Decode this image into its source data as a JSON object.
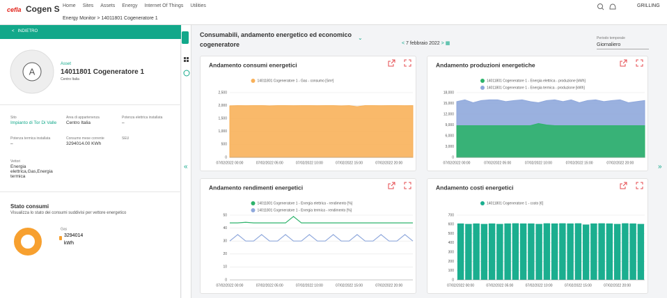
{
  "nav": {
    "logo_mark": "cefla",
    "logo": "Cogen S",
    "items": [
      "Home",
      "Sites",
      "Assets",
      "Energy",
      "Internet Of Things",
      "Utilities"
    ],
    "user": "GRILLING"
  },
  "breadcrumb": [
    "Energy Monitor",
    "14011801 Cogeneratore 1"
  ],
  "sidebar": {
    "back": "INDIETRO",
    "avatar": "A",
    "asset_label": "Asset",
    "asset_name": "14011801 Cogeneratore 1",
    "asset_region": "Centro Italia",
    "fields": [
      {
        "label": "Sito",
        "value": "Impianto di Tor Di Valle"
      },
      {
        "label": "Area di appartenenza",
        "value": "Centro Italia"
      },
      {
        "label": "Potenza elettrica installata",
        "value": "–"
      },
      {
        "label": "Potenza termica installata",
        "value": "–"
      },
      {
        "label": "Consumo mese corrente",
        "value": "3294014.00 KWh"
      },
      {
        "label": "SEU"
      },
      {
        "label": "Vettori",
        "value": "Energia elettrica,Gas,Energia termica"
      }
    ],
    "status_title": "Stato consumi",
    "status_desc": "Visualizza lo stato dei consumi suddivisi per vettore energetico"
  },
  "main": {
    "title": "Consumabili, andamento energetico ed economico cogeneratore",
    "date": "7 febbraio 2022",
    "period_label": "Periodo temporale",
    "period_value": "Giornaliero"
  },
  "chart_data": [
    {
      "type": "area",
      "title": "Andamento consumi energetici",
      "categories": [
        "07/02/2022 00:00",
        null,
        null,
        null,
        null,
        "07/02/2022 05:00",
        null,
        null,
        null,
        null,
        "07/02/2022 10:00",
        null,
        null,
        null,
        null,
        "07/02/2022 15:00",
        null,
        null,
        null,
        null,
        "07/02/2022 20:00",
        null,
        null,
        null
      ],
      "series": [
        {
          "name": "14011801 Cogeneratore 1 - Gas - consumo [Sm³]",
          "color": "#f8b15a",
          "values": [
            1990,
            2000,
            1995,
            2000,
            2000,
            1990,
            2000,
            2000,
            1995,
            2000,
            2000,
            1995,
            2000,
            2000,
            1990,
            2000,
            1960,
            2000,
            2000,
            1995,
            2000,
            2000,
            1995,
            2000
          ]
        }
      ],
      "ylim": [
        0,
        2500
      ],
      "yticks": [
        0,
        500,
        {
          "value": 1000,
          "label": "1,000"
        },
        {
          "value": 1500,
          "label": "1,500"
        },
        {
          "value": 2000,
          "label": "2,000"
        },
        {
          "value": 2500,
          "label": "2,500"
        }
      ],
      "grid": true
    },
    {
      "type": "area",
      "title": "Andamento produzioni energetiche",
      "categories": [
        "07/02/2022 00:00",
        null,
        null,
        null,
        null,
        "07/02/2022 05:00",
        null,
        null,
        null,
        null,
        "07/02/2022 10:00",
        null,
        null,
        null,
        null,
        "07/02/2022 15:00",
        null,
        null,
        null,
        null,
        "07/02/2022 20:00",
        null,
        null,
        null
      ],
      "series": [
        {
          "name": "14011801 Cogeneratore 1 - Energia elettrica - produzione [kWh]",
          "color": "#2db36b",
          "values": [
            8800,
            8800,
            8800,
            8800,
            8800,
            8800,
            8800,
            8800,
            8800,
            8800,
            9400,
            9000,
            8800,
            8800,
            8800,
            8800,
            8800,
            8800,
            8800,
            8800,
            8800,
            8800,
            8800,
            8800
          ]
        },
        {
          "name": "14011801 Cogeneratore 1 - Energia termica - produzione [kWh]",
          "color": "#8fa8dc",
          "values": [
            15500,
            16000,
            15200,
            15800,
            16000,
            16000,
            15500,
            15800,
            16000,
            15500,
            15200,
            15800,
            16000,
            15500,
            16000,
            15200,
            15800,
            16000,
            15500,
            15800,
            16000,
            15200,
            15500,
            15800
          ]
        }
      ],
      "ylim": [
        0,
        18000
      ],
      "yticks": [
        0,
        {
          "value": 3000,
          "label": "3,000"
        },
        {
          "value": 6000,
          "label": "6,000"
        },
        {
          "value": 9000,
          "label": "9,000"
        },
        {
          "value": 12000,
          "label": "12,000"
        },
        {
          "value": 15000,
          "label": "15,000"
        },
        {
          "value": 18000,
          "label": "18,000"
        }
      ],
      "grid": true
    },
    {
      "type": "line",
      "title": "Andamento rendimenti energetici",
      "categories": [
        "07/02/2022 00:00",
        null,
        null,
        null,
        null,
        "07/02/2022 05:00",
        null,
        null,
        null,
        null,
        "07/02/2022 10:00",
        null,
        null,
        null,
        null,
        "07/02/2022 15:00",
        null,
        null,
        null,
        null,
        "07/02/2022 20:00",
        null,
        null,
        null
      ],
      "series": [
        {
          "name": "14011801 Cogeneratore 1 - Energia elettrica - rendimento [%]",
          "color": "#2db36b",
          "values": [
            44,
            44,
            44.5,
            44,
            44,
            44,
            44,
            44,
            49,
            44,
            44,
            44,
            44,
            44,
            44,
            44,
            44,
            44,
            44,
            44,
            44,
            44,
            44,
            44
          ]
        },
        {
          "name": "14011801 Cogeneratore 1 - Energia termica - rendimento [%]",
          "color": "#8fa8dc",
          "values": [
            30,
            35,
            30,
            30,
            35,
            30,
            30,
            35,
            30,
            30,
            35,
            30,
            30,
            35,
            30,
            30,
            35,
            30,
            30,
            35,
            30,
            30,
            35,
            30
          ]
        }
      ],
      "ylim": [
        0,
        50
      ],
      "yticks": [
        0,
        10,
        20,
        30,
        40,
        50
      ],
      "grid": true
    },
    {
      "type": "bar",
      "title": "Andamento costi energetici",
      "categories": [
        "07/02/2022 00:00",
        null,
        null,
        null,
        null,
        "07/02/2022 05:00",
        null,
        null,
        null,
        null,
        "07/02/2022 10:00",
        null,
        null,
        null,
        null,
        "07/02/2022 15:00",
        null,
        null,
        null,
        null,
        "07/02/2022 20:00",
        null,
        null,
        null
      ],
      "series": [
        {
          "name": "14011801 Cogeneratore 1 - costo [€]",
          "color": "#1bae8f",
          "values": [
            610,
            605,
            610,
            605,
            610,
            605,
            610,
            612,
            610,
            610,
            605,
            612,
            610,
            612,
            610,
            612,
            598,
            610,
            612,
            610,
            605,
            612,
            610,
            605
          ]
        }
      ],
      "ylim": [
        0,
        700
      ],
      "yticks": [
        0,
        100,
        200,
        300,
        400,
        500,
        600,
        700
      ],
      "grid": true
    },
    {
      "type": "pie",
      "series": [
        {
          "name": "Gas",
          "value": 3294014,
          "unit": "kWh",
          "color": "#f7a02f"
        }
      ]
    }
  ]
}
